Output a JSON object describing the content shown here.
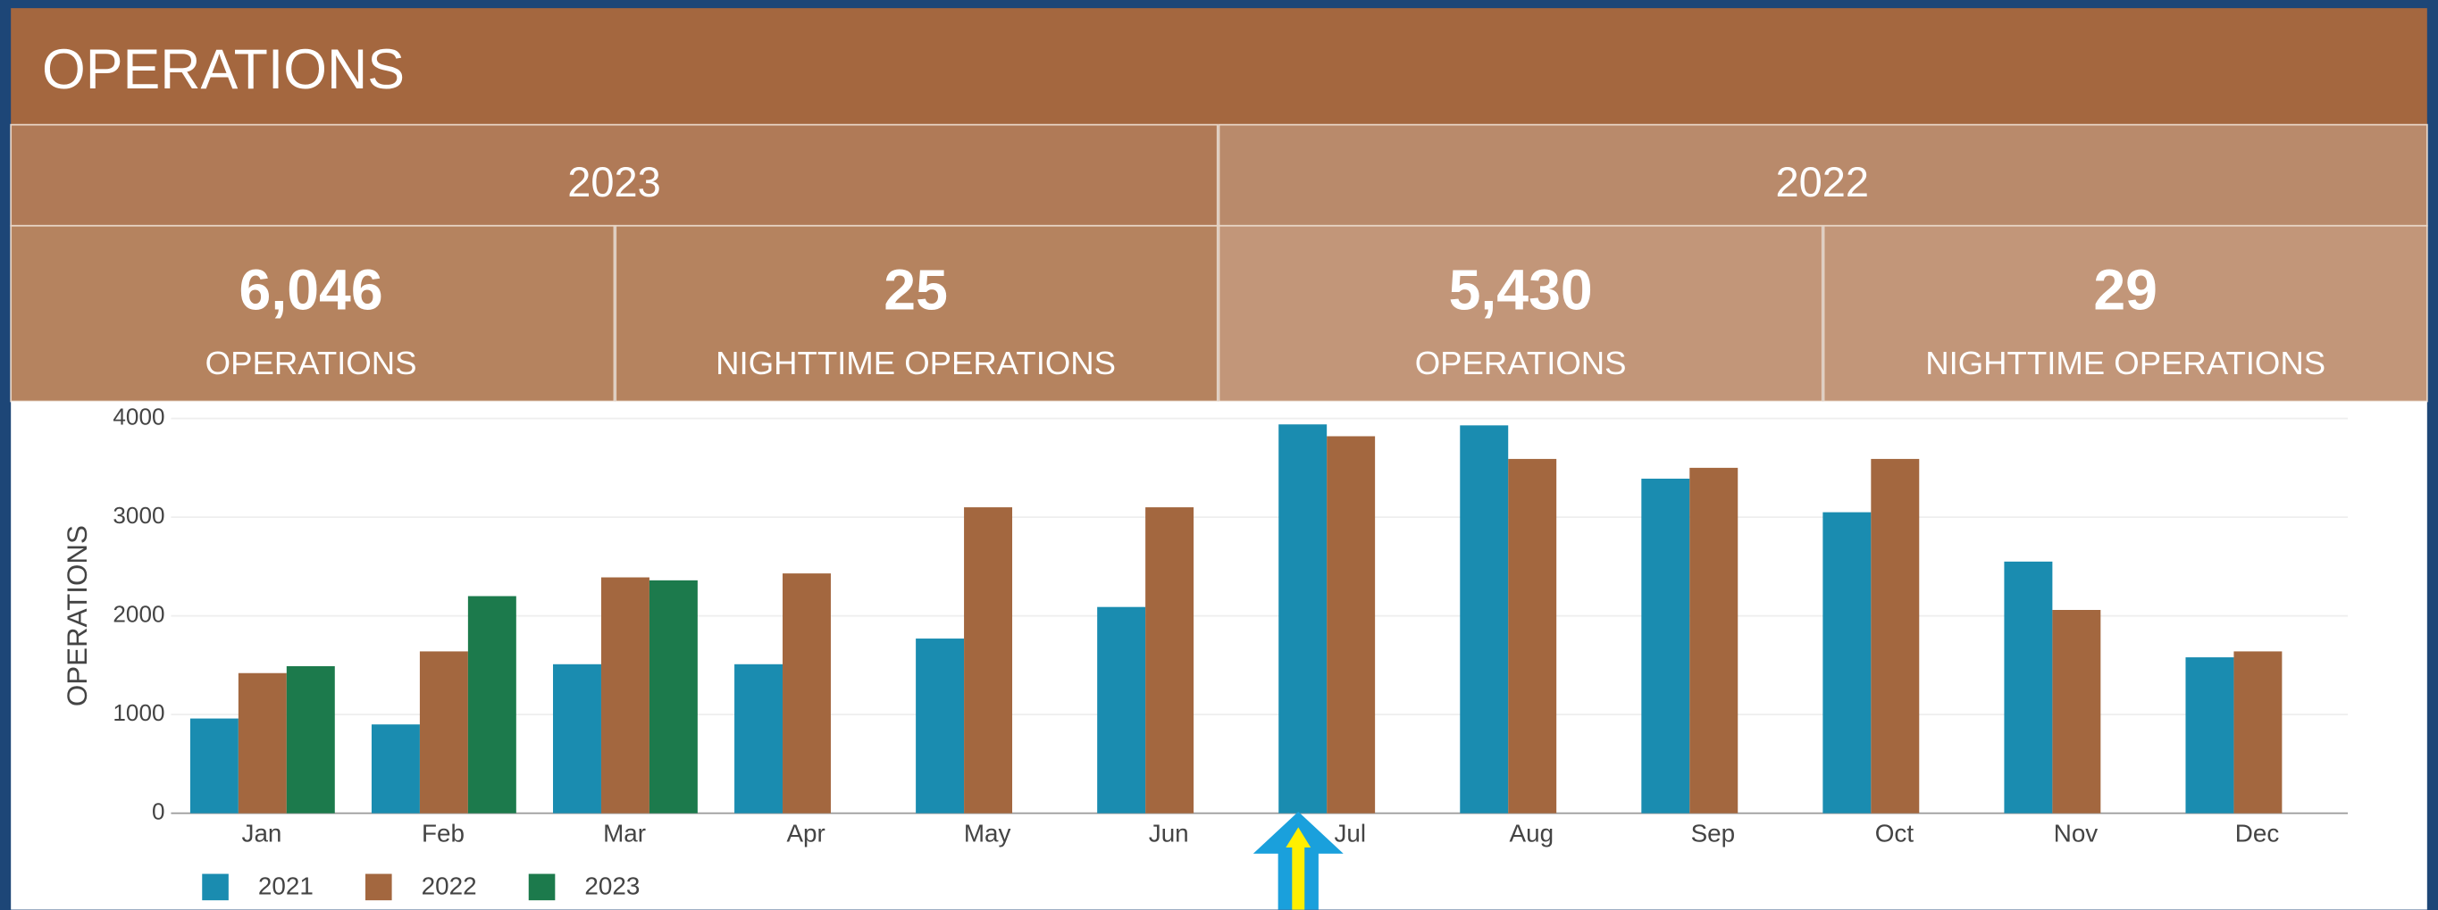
{
  "header": {
    "title": "OPERATIONS"
  },
  "years": [
    "2023",
    "2022"
  ],
  "stats": [
    {
      "value": "6,046",
      "label": "OPERATIONS"
    },
    {
      "value": "25",
      "label": "NIGHTTIME OPERATIONS"
    },
    {
      "value": "5,430",
      "label": "OPERATIONS"
    },
    {
      "value": "29",
      "label": "NIGHTTIME OPERATIONS"
    }
  ],
  "chart_data": {
    "type": "bar",
    "ylabel": "OPERATIONS",
    "categories": [
      "Jan",
      "Feb",
      "Mar",
      "Apr",
      "May",
      "Jun",
      "Jul",
      "Aug",
      "Sep",
      "Oct",
      "Nov",
      "Dec"
    ],
    "series": [
      {
        "name": "2021",
        "color": "#1a8cb0",
        "values": [
          960,
          900,
          1510,
          1510,
          1770,
          2090,
          3940,
          3930,
          3390,
          3050,
          2550,
          1580
        ]
      },
      {
        "name": "2022",
        "color": "#a3673f",
        "values": [
          1420,
          1640,
          2390,
          2430,
          3100,
          3100,
          3820,
          3590,
          3500,
          3590,
          2060,
          1640
        ]
      },
      {
        "name": "2023",
        "color": "#1c7a4c",
        "values": [
          1490,
          2200,
          2360,
          null,
          null,
          null,
          null,
          null,
          null,
          null,
          null,
          null
        ]
      }
    ],
    "ylim": [
      0,
      4000
    ],
    "yticks": [
      0,
      1000,
      2000,
      3000,
      4000
    ],
    "grid": true,
    "legend": "bottom-left"
  }
}
